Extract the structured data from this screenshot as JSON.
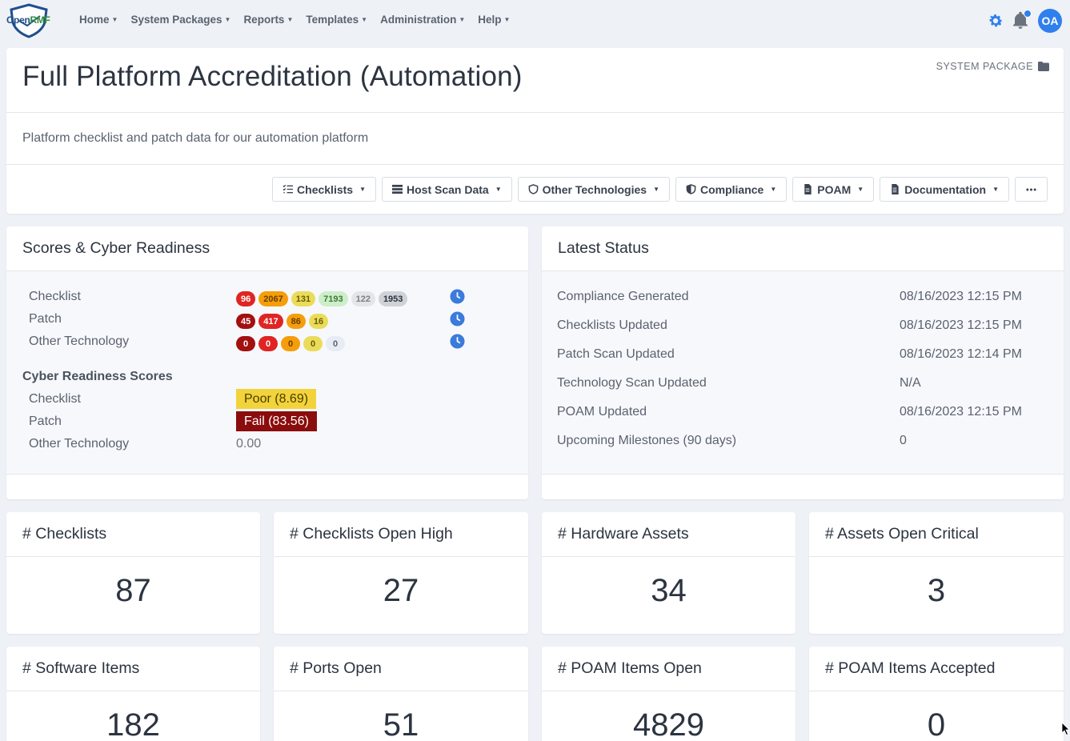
{
  "nav": {
    "logo_open": "Open",
    "logo_rmf": "RMF",
    "items": [
      {
        "label": "Home"
      },
      {
        "label": "System Packages"
      },
      {
        "label": "Reports"
      },
      {
        "label": "Templates"
      },
      {
        "label": "Administration"
      },
      {
        "label": "Help"
      }
    ],
    "avatar": "OA"
  },
  "header": {
    "title": "Full Platform Accreditation (Automation)",
    "package_label": "SYSTEM PACKAGE",
    "description": "Platform checklist and patch data for our automation platform",
    "toolbar": [
      {
        "label": "Checklists",
        "icon": "list-check-icon"
      },
      {
        "label": "Host Scan Data",
        "icon": "server-icon"
      },
      {
        "label": "Other Technologies",
        "icon": "shield-icon"
      },
      {
        "label": "Compliance",
        "icon": "half-shield-icon"
      },
      {
        "label": "POAM",
        "icon": "file-icon"
      },
      {
        "label": "Documentation",
        "icon": "document-icon"
      }
    ]
  },
  "scores": {
    "title": "Scores & Cyber Readiness",
    "rows": [
      {
        "label": "Checklist",
        "badges": [
          "96",
          "2067",
          "131",
          "7193",
          "122",
          "1953"
        ]
      },
      {
        "label": "Patch",
        "badges": [
          "45",
          "417",
          "86",
          "16"
        ]
      },
      {
        "label": "Other Technology",
        "badges": [
          "0",
          "0",
          "0",
          "0",
          "0"
        ]
      }
    ],
    "readiness_title": "Cyber Readiness Scores",
    "readiness": [
      {
        "label": "Checklist",
        "value": "Poor (8.69)"
      },
      {
        "label": "Patch",
        "value": "Fail (83.56)"
      },
      {
        "label": "Other Technology",
        "value": "0.00"
      }
    ]
  },
  "status": {
    "title": "Latest Status",
    "rows": [
      {
        "label": "Compliance Generated",
        "value": "08/16/2023 12:15 PM"
      },
      {
        "label": "Checklists Updated",
        "value": "08/16/2023 12:15 PM"
      },
      {
        "label": "Patch Scan Updated",
        "value": "08/16/2023 12:14 PM"
      },
      {
        "label": "Technology Scan Updated",
        "value": "N/A"
      },
      {
        "label": "POAM Updated",
        "value": "08/16/2023 12:15 PM"
      },
      {
        "label": "Upcoming Milestones (90 days)",
        "value": "0"
      }
    ]
  },
  "stats": [
    {
      "title": "# Checklists",
      "value": "87"
    },
    {
      "title": "# Checklists Open High",
      "value": "27"
    },
    {
      "title": "# Hardware Assets",
      "value": "34"
    },
    {
      "title": "# Assets Open Critical",
      "value": "3"
    },
    {
      "title": "# Software Items",
      "value": "182"
    },
    {
      "title": "# Ports Open",
      "value": "51"
    },
    {
      "title": "# POAM Items Open",
      "value": "4829"
    },
    {
      "title": "# POAM Items Accepted",
      "value": "0"
    }
  ],
  "colors": {
    "accent": "#2f80ed",
    "badge_cat1": "#e02424",
    "badge_cat1_dark": "#a31010",
    "badge_cat2": "#f59e0b",
    "badge_cat3": "#eadc5a",
    "badge_pass": "#cdeec9",
    "badge_na": "#e3e5e8",
    "badge_nr": "#cfd2d6",
    "poor": "#f2d33b",
    "fail": "#8b0c0c"
  }
}
